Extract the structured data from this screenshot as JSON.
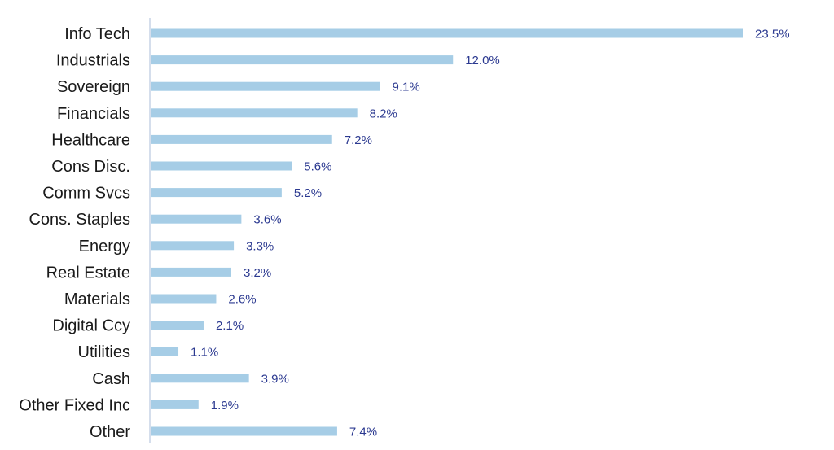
{
  "chart_data": {
    "type": "bar",
    "orientation": "horizontal",
    "categories": [
      "Info Tech",
      "Industrials",
      "Sovereign",
      "Financials",
      "Healthcare",
      "Cons Disc.",
      "Comm Svcs",
      "Cons. Staples",
      "Energy",
      "Real Estate",
      "Materials",
      "Digital Ccy",
      "Utilities",
      "Cash",
      "Other Fixed Inc",
      "Other"
    ],
    "values": [
      23.5,
      12.0,
      9.1,
      8.2,
      7.2,
      5.6,
      5.2,
      3.6,
      3.3,
      3.2,
      2.6,
      2.1,
      1.1,
      3.9,
      1.9,
      7.4
    ],
    "data_labels": [
      "23.5%",
      "12.0%",
      "9.1%",
      "8.2%",
      "7.2%",
      "5.6%",
      "5.2%",
      "3.6%",
      "3.3%",
      "3.2%",
      "2.6%",
      "2.1%",
      "1.1%",
      "3.9%",
      "1.9%",
      "7.4%"
    ],
    "title": "",
    "xlabel": "",
    "ylabel": "",
    "grid": false,
    "legend": "none",
    "colors": {
      "bar": "#a6cde6",
      "data_label": "#2b3990",
      "category_label": "#1a1a1a",
      "axis_line": "#c7d3e6"
    }
  }
}
